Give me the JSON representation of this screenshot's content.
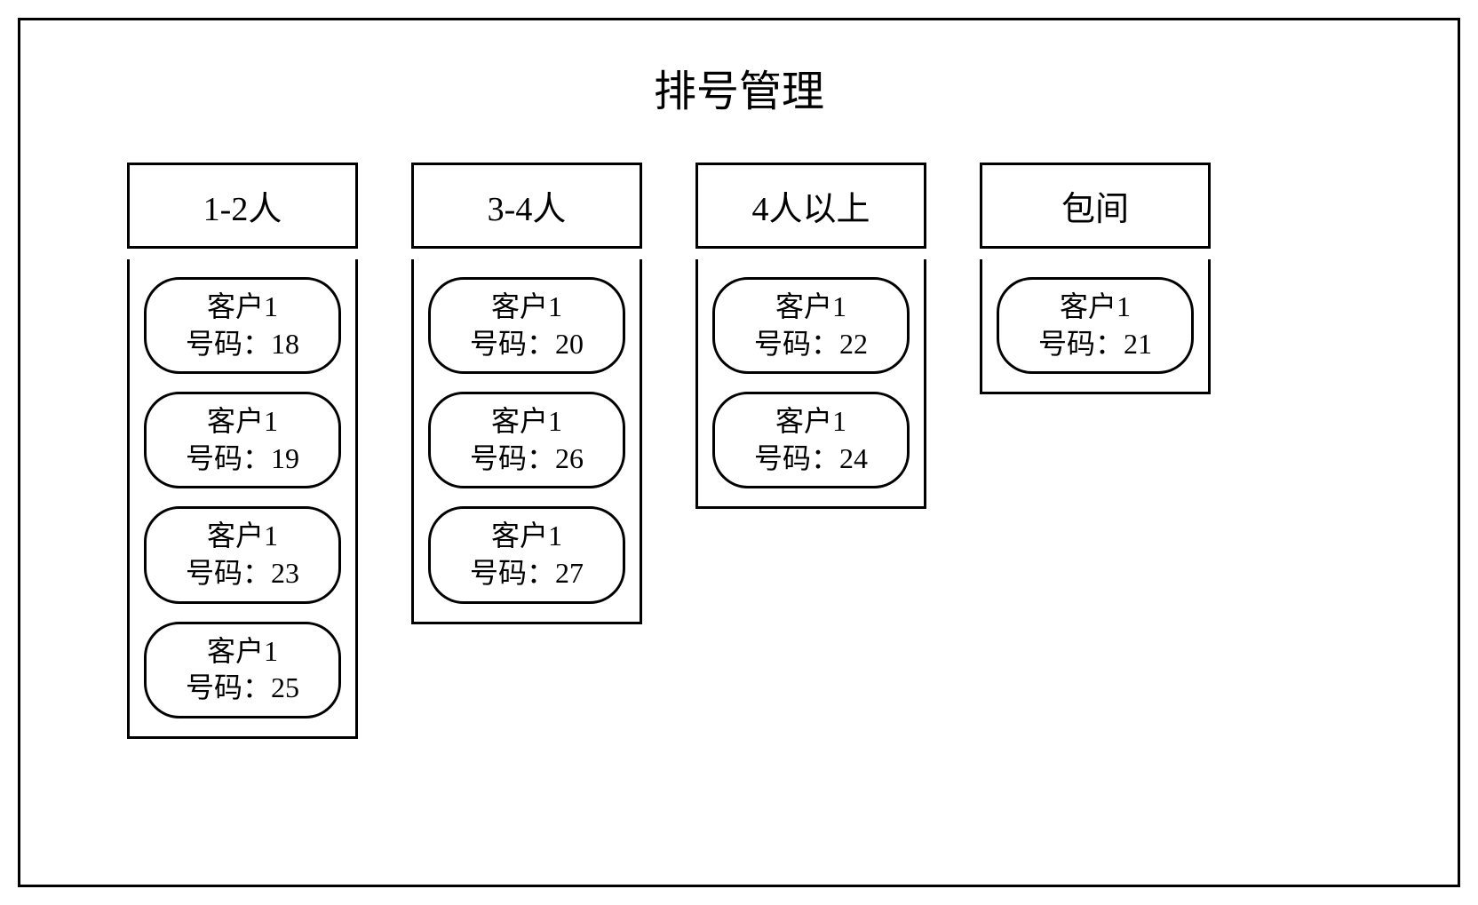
{
  "title": "排号管理",
  "customer_label": "客户1",
  "number_prefix": "号码：",
  "colors": {
    "border": "#000000",
    "background": "#ffffff",
    "text": "#000000"
  },
  "typography": {
    "title_fontsize": 48,
    "header_fontsize": 38,
    "ticket_fontsize": 32,
    "font_family": "SimSun"
  },
  "layout": {
    "container_border_width": 3,
    "ticket_border_radius": 40,
    "column_gap": 60
  },
  "columns": [
    {
      "header": "1-2人",
      "tickets": [
        {
          "customer": "客户1",
          "number": "18"
        },
        {
          "customer": "客户1",
          "number": "19"
        },
        {
          "customer": "客户1",
          "number": "23"
        },
        {
          "customer": "客户1",
          "number": "25"
        }
      ]
    },
    {
      "header": "3-4人",
      "tickets": [
        {
          "customer": "客户1",
          "number": "20"
        },
        {
          "customer": "客户1",
          "number": "26"
        },
        {
          "customer": "客户1",
          "number": "27"
        }
      ]
    },
    {
      "header": "4人以上",
      "tickets": [
        {
          "customer": "客户1",
          "number": "22"
        },
        {
          "customer": "客户1",
          "number": "24"
        }
      ]
    },
    {
      "header": "包间",
      "tickets": [
        {
          "customer": "客户1",
          "number": "21"
        }
      ]
    }
  ]
}
